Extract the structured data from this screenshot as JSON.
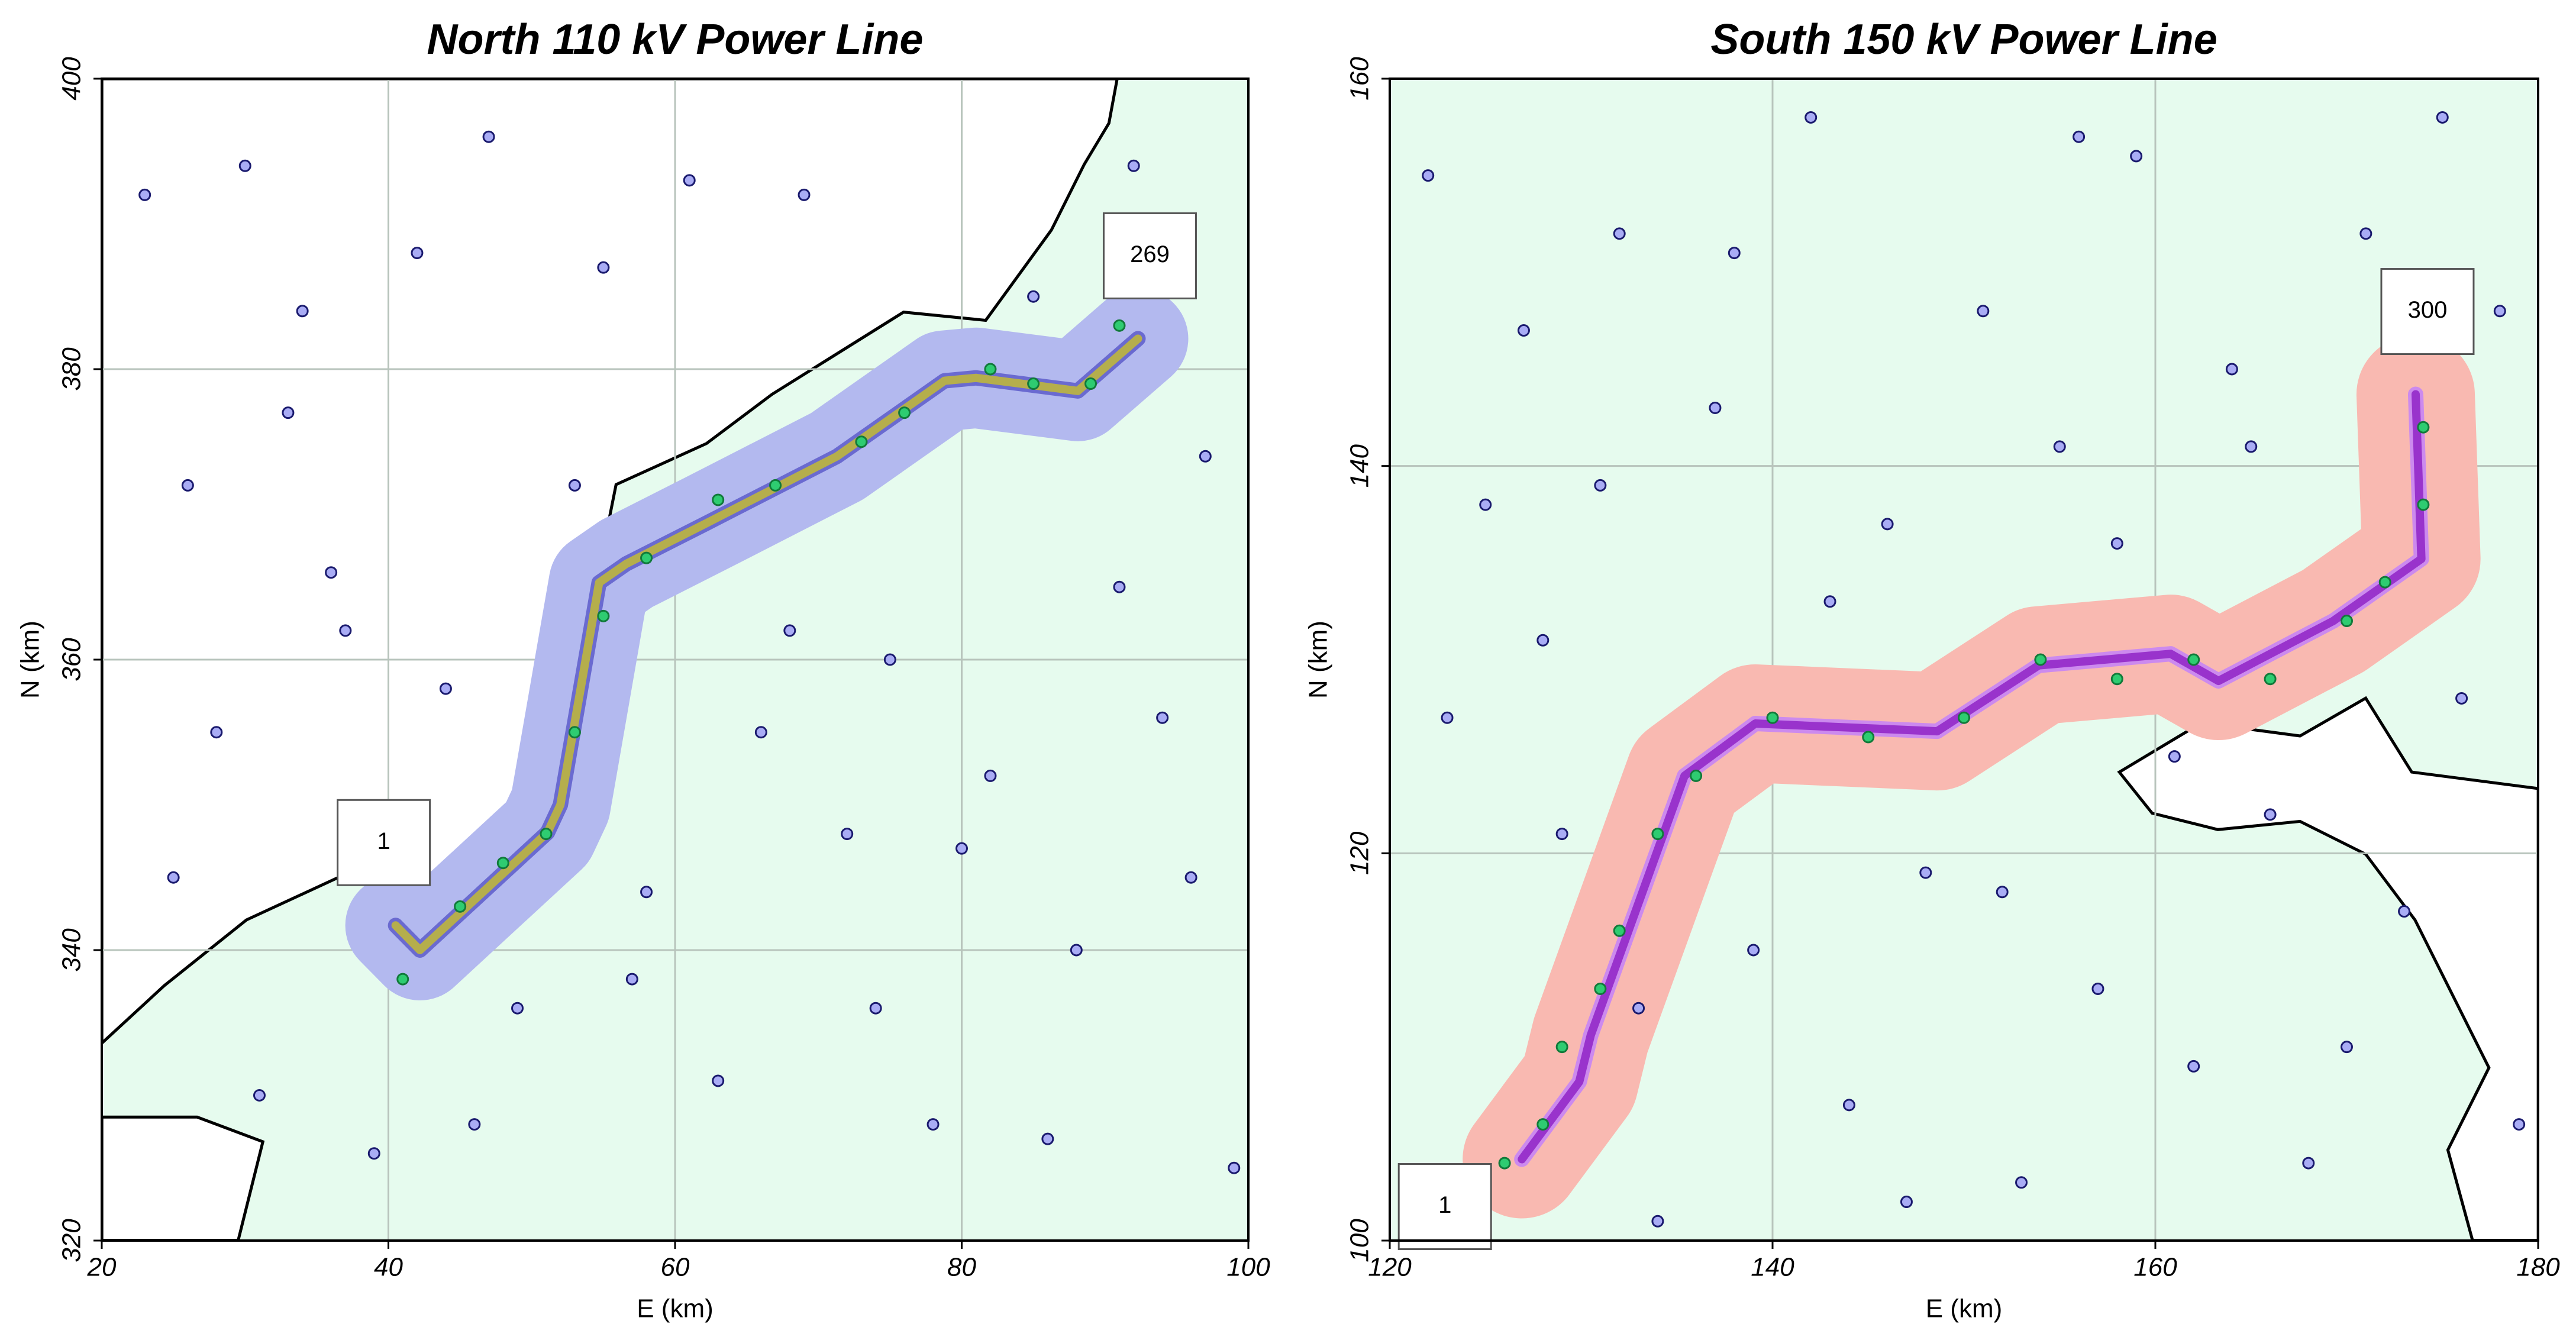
{
  "chart_data": [
    {
      "type": "map",
      "title": "North 110 kV Power Line",
      "xlabel": "E (km)",
      "ylabel": "N (km)",
      "xlim": [
        20,
        100
      ],
      "ylim": [
        320,
        400
      ],
      "xticks": [
        20,
        40,
        60,
        80,
        100
      ],
      "yticks": [
        320,
        340,
        360,
        380,
        400
      ],
      "grid": true,
      "background_color": "#e6fbee",
      "buffer_color": "#b3b9ef",
      "line_color": "#b5ae4c",
      "line_edge_color": "#6a6ad0",
      "line": {
        "x": [
          40.5,
          42.2,
          51.1,
          52,
          54.7,
          56.6,
          62.2,
          71.3,
          78.8,
          81,
          88.1,
          92.3
        ],
        "y": [
          341.7,
          340,
          348.1,
          350,
          365.3,
          366.6,
          369.4,
          374,
          379.2,
          379.4,
          378.5,
          382.1
        ]
      },
      "points": {
        "color": "#a9acf5",
        "x": [
          23,
          26,
          28,
          31,
          34,
          37,
          39,
          44,
          47,
          49,
          55,
          58,
          63,
          66,
          69,
          72,
          75,
          78,
          82,
          85,
          88,
          91,
          94,
          97,
          99,
          25,
          30,
          36,
          42,
          46,
          53,
          61,
          68,
          74,
          80,
          86,
          92,
          96,
          33,
          57
        ],
        "y": [
          392,
          372,
          355,
          330,
          384,
          362,
          326,
          358,
          396,
          336,
          387,
          344,
          331,
          355,
          392,
          348,
          360,
          328,
          352,
          385,
          340,
          365,
          356,
          374,
          325,
          345,
          394,
          366,
          388,
          328,
          372,
          393,
          362,
          336,
          347,
          327,
          394,
          345,
          377,
          338
        ]
      },
      "buffer_points": {
        "color": "#2ecc71",
        "x": [
          41,
          45,
          48,
          51,
          53,
          55,
          58,
          63,
          67,
          73,
          76,
          82,
          85,
          89,
          91
        ],
        "y": [
          338,
          343,
          346,
          348,
          355,
          363,
          367,
          371,
          372,
          375,
          377,
          380,
          379,
          379,
          383
        ]
      },
      "start_label": "1",
      "end_label": "269"
    },
    {
      "type": "map",
      "title": "South 150 kV Power Line",
      "xlabel": "E (km)",
      "ylabel": "N (km)",
      "xlim": [
        120,
        180
      ],
      "ylim": [
        100,
        160
      ],
      "xticks": [
        120,
        140,
        160,
        180
      ],
      "yticks": [
        100,
        120,
        140,
        160
      ],
      "grid": true,
      "background_color": "#e6fbee",
      "buffer_color": "#f9b9b1",
      "line_color": "#9933cc",
      "line_edge_color": "#cc8aee",
      "line": {
        "x": [
          126.9,
          129.9,
          130.5,
          135.4,
          139.1,
          148.6,
          153.9,
          160.8,
          163.3,
          169.3,
          173.9,
          173.6
        ],
        "y": [
          104.2,
          108.2,
          110.6,
          124,
          126.7,
          126.3,
          129.7,
          130.3,
          128.9,
          132,
          135.2,
          143.7
        ]
      },
      "points": {
        "color": "#a9acf5",
        "x": [
          122,
          125,
          127,
          129,
          132,
          134,
          137,
          139,
          142,
          144,
          146,
          148,
          151,
          153,
          155,
          157,
          159,
          162,
          164,
          166,
          168,
          171,
          173,
          176,
          178,
          179,
          123,
          128,
          133,
          138,
          143,
          147,
          152,
          156,
          161,
          165,
          170,
          175,
          131,
          158
        ],
        "y": [
          155,
          138,
          147,
          121,
          152,
          101,
          143,
          115,
          158,
          107,
          137,
          119,
          148,
          103,
          141,
          113,
          156,
          109,
          145,
          122,
          104,
          152,
          117,
          128,
          148,
          106,
          127,
          131,
          112,
          151,
          133,
          102,
          118,
          157,
          125,
          141,
          110,
          158,
          139,
          136
        ]
      },
      "buffer_points": {
        "color": "#2ecc71",
        "x": [
          126,
          128,
          129,
          131,
          132,
          134,
          136,
          140,
          145,
          150,
          154,
          158,
          162,
          166,
          170,
          172,
          174,
          174
        ],
        "y": [
          104,
          106,
          110,
          113,
          116,
          121,
          124,
          127,
          126,
          127,
          130,
          129,
          130,
          129,
          132,
          134,
          138,
          142
        ]
      },
      "start_label": "1",
      "end_label": "300"
    }
  ]
}
